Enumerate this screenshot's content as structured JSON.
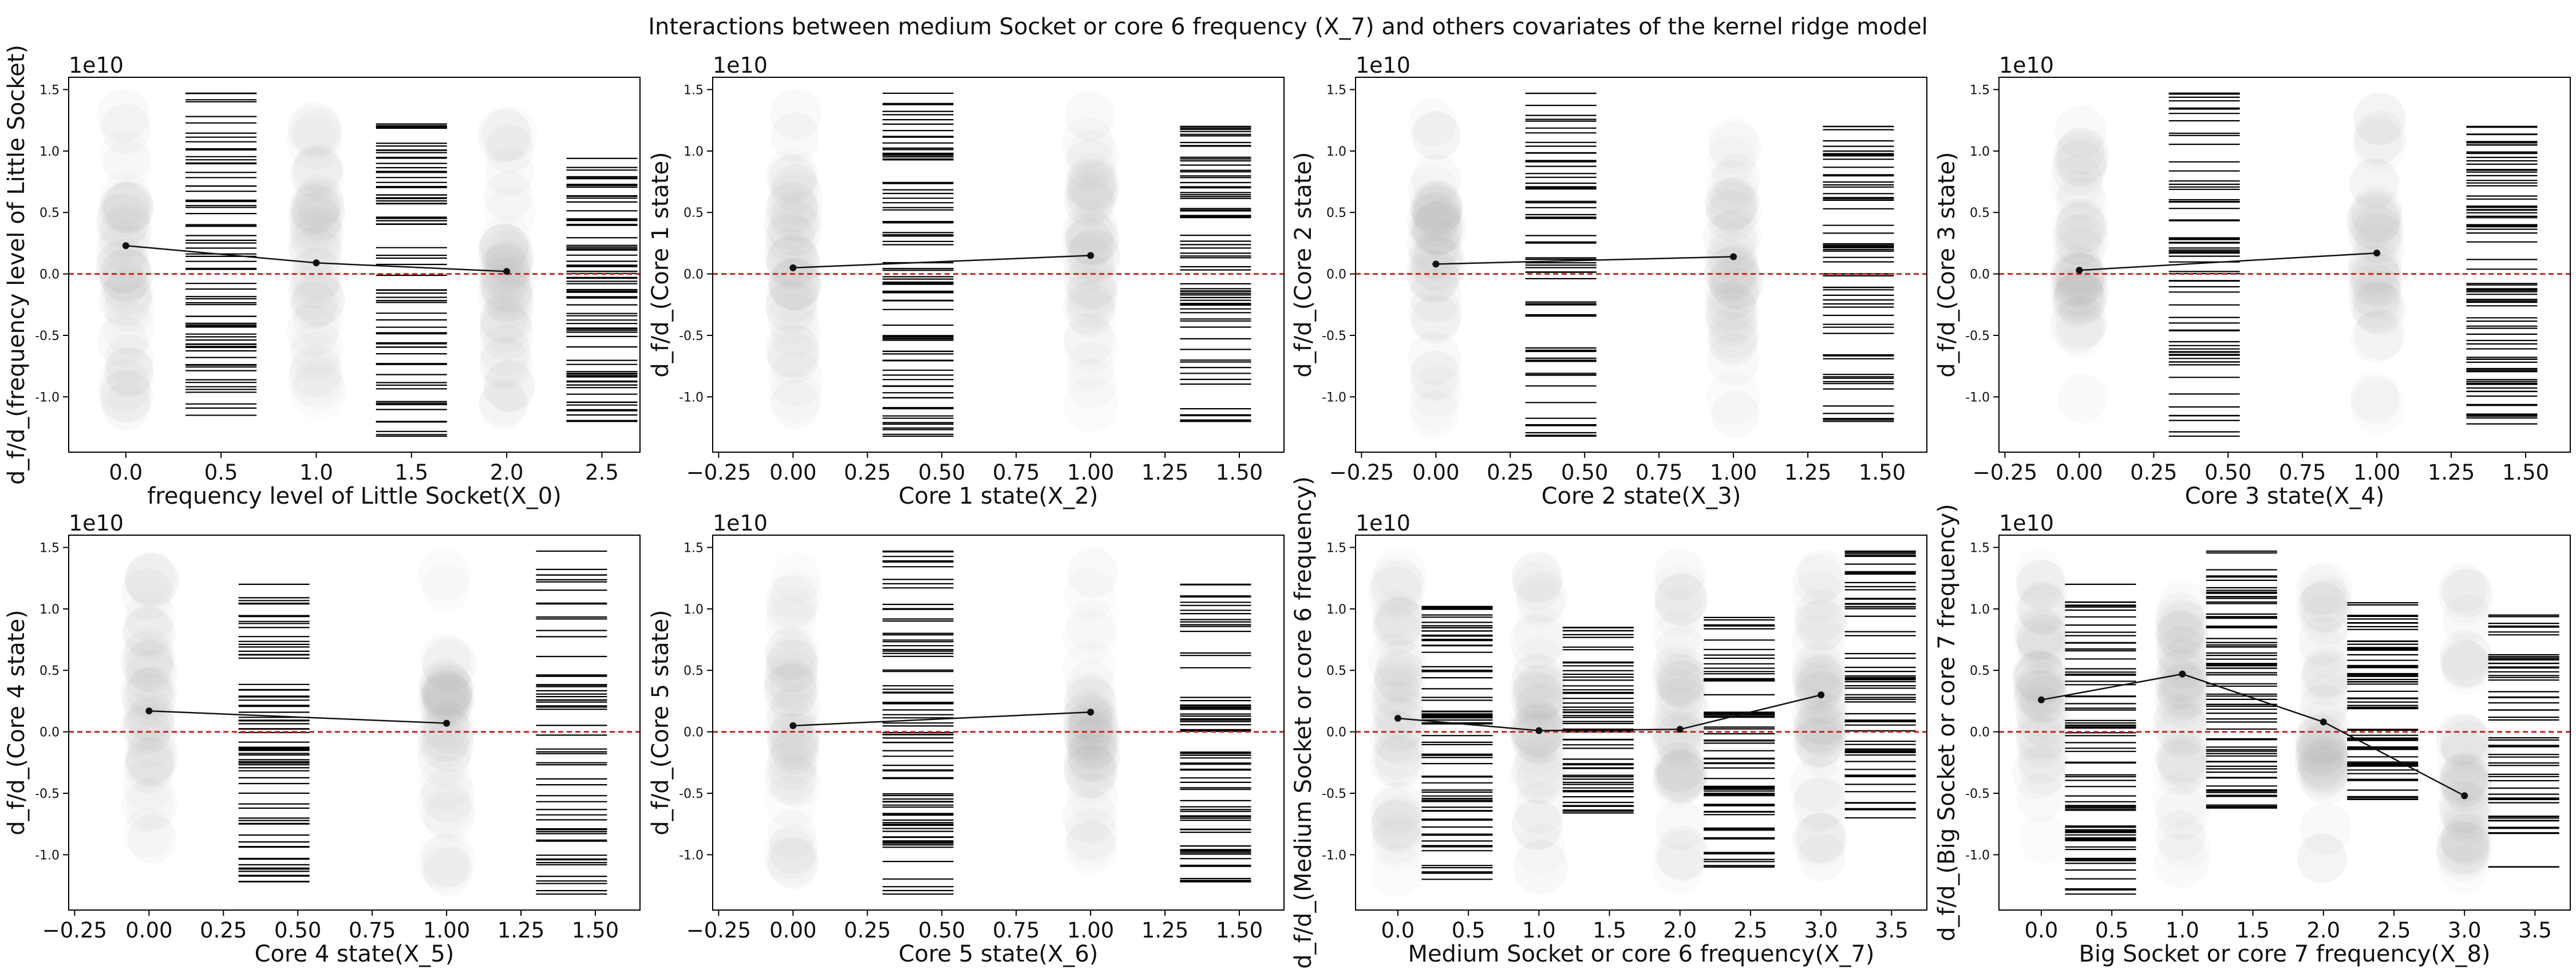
{
  "figure": {
    "title": "Interactions between medium Socket or core 6 frequency (X_7)  and others covariates of the kernel ridge model"
  },
  "style": {
    "reference_line_color": "#cc2222",
    "marker_color": "#111111",
    "rug_color": "#000000",
    "bubble_color": "#9a9a9a"
  },
  "chart_data": [
    {
      "type": "scatter",
      "xlabel": "frequency level of Little Socket(X_0)",
      "ylabel": "d_f/d_(frequency level of Little Socket)",
      "offset_text": "1e10",
      "xlim": [
        -0.3,
        2.7
      ],
      "ylim": [
        -1.45,
        1.6
      ],
      "xticks": [
        "0.0",
        "0.5",
        "1.0",
        "1.5",
        "2.0",
        "2.5"
      ],
      "xtick_values": [
        0,
        0.5,
        1,
        1.5,
        2,
        2.5
      ],
      "yticks": [
        "-1.0",
        "-0.5",
        "0.0",
        "0.5",
        "1.0",
        "1.5"
      ],
      "ytick_values": [
        -1,
        -0.5,
        0,
        0.5,
        1,
        1.5
      ],
      "reference_y": 0,
      "categories": [
        0,
        1,
        2
      ],
      "mean_line": [
        {
          "x": 0,
          "y": 0.23
        },
        {
          "x": 1,
          "y": 0.09
        },
        {
          "x": 2,
          "y": 0.02
        }
      ],
      "rug_columns": [
        {
          "x": 0.5,
          "ymin": -1.15,
          "ymax": 1.47
        },
        {
          "x": 1.5,
          "ymin": -1.32,
          "ymax": 1.22
        },
        {
          "x": 2.5,
          "ymin": -1.2,
          "ymax": 0.94
        }
      ]
    },
    {
      "type": "scatter",
      "xlabel": "Core 1 state(X_2)",
      "ylabel": "d_f/d_(Core 1 state)",
      "offset_text": "1e10",
      "xlim": [
        -0.27,
        1.65
      ],
      "ylim": [
        -1.45,
        1.6
      ],
      "xticks": [
        "−0.25",
        "0.00",
        "0.25",
        "0.50",
        "0.75",
        "1.00",
        "1.25",
        "1.50"
      ],
      "xtick_values": [
        -0.25,
        0,
        0.25,
        0.5,
        0.75,
        1,
        1.25,
        1.5
      ],
      "yticks": [
        "-1.0",
        "-0.5",
        "0.0",
        "0.5",
        "1.0",
        "1.5"
      ],
      "ytick_values": [
        -1,
        -0.5,
        0,
        0.5,
        1,
        1.5
      ],
      "reference_y": 0,
      "categories": [
        0,
        1
      ],
      "mean_line": [
        {
          "x": 0,
          "y": 0.05
        },
        {
          "x": 1,
          "y": 0.15
        }
      ],
      "rug_columns": [
        {
          "x": 0.42,
          "ymin": -1.32,
          "ymax": 1.47
        },
        {
          "x": 1.42,
          "ymin": -1.2,
          "ymax": 1.2
        }
      ]
    },
    {
      "type": "scatter",
      "xlabel": "Core 2 state(X_3)",
      "ylabel": "d_f/d_(Core 2 state)",
      "offset_text": "1e10",
      "xlim": [
        -0.27,
        1.65
      ],
      "ylim": [
        -1.45,
        1.6
      ],
      "xticks": [
        "−0.25",
        "0.00",
        "0.25",
        "0.50",
        "0.75",
        "1.00",
        "1.25",
        "1.50"
      ],
      "xtick_values": [
        -0.25,
        0,
        0.25,
        0.5,
        0.75,
        1,
        1.25,
        1.5
      ],
      "yticks": [
        "-1.0",
        "-0.5",
        "0.0",
        "0.5",
        "1.0",
        "1.5"
      ],
      "ytick_values": [
        -1,
        -0.5,
        0,
        0.5,
        1,
        1.5
      ],
      "reference_y": 0,
      "categories": [
        0,
        1
      ],
      "mean_line": [
        {
          "x": 0,
          "y": 0.08
        },
        {
          "x": 1,
          "y": 0.14
        }
      ],
      "rug_columns": [
        {
          "x": 0.42,
          "ymin": -1.32,
          "ymax": 1.47
        },
        {
          "x": 1.42,
          "ymin": -1.2,
          "ymax": 1.2
        }
      ]
    },
    {
      "type": "scatter",
      "xlabel": "Core 3 state(X_4)",
      "ylabel": "d_f/d_(Core 3 state)",
      "offset_text": "1e10",
      "xlim": [
        -0.27,
        1.65
      ],
      "ylim": [
        -1.45,
        1.6
      ],
      "xticks": [
        "−0.25",
        "0.00",
        "0.25",
        "0.50",
        "0.75",
        "1.00",
        "1.25",
        "1.50"
      ],
      "xtick_values": [
        -0.25,
        0,
        0.25,
        0.5,
        0.75,
        1,
        1.25,
        1.5
      ],
      "yticks": [
        "-1.0",
        "-0.5",
        "0.0",
        "0.5",
        "1.0",
        "1.5"
      ],
      "ytick_values": [
        -1,
        -0.5,
        0,
        0.5,
        1,
        1.5
      ],
      "reference_y": 0,
      "categories": [
        0,
        1
      ],
      "mean_line": [
        {
          "x": 0,
          "y": 0.03
        },
        {
          "x": 1,
          "y": 0.17
        }
      ],
      "rug_columns": [
        {
          "x": 0.42,
          "ymin": -1.32,
          "ymax": 1.47
        },
        {
          "x": 1.42,
          "ymin": -1.22,
          "ymax": 1.2
        }
      ]
    },
    {
      "type": "scatter",
      "xlabel": "Core 4 state(X_5)",
      "ylabel": "d_f/d_(Core 4 state)",
      "offset_text": "1e10",
      "xlim": [
        -0.27,
        1.65
      ],
      "ylim": [
        -1.45,
        1.6
      ],
      "xticks": [
        "−0.25",
        "0.00",
        "0.25",
        "0.50",
        "0.75",
        "1.00",
        "1.25",
        "1.50"
      ],
      "xtick_values": [
        -0.25,
        0,
        0.25,
        0.5,
        0.75,
        1,
        1.25,
        1.5
      ],
      "yticks": [
        "-1.0",
        "-0.5",
        "0.0",
        "0.5",
        "1.0",
        "1.5"
      ],
      "ytick_values": [
        -1,
        -0.5,
        0,
        0.5,
        1,
        1.5
      ],
      "reference_y": 0,
      "categories": [
        0,
        1
      ],
      "mean_line": [
        {
          "x": 0,
          "y": 0.17
        },
        {
          "x": 1,
          "y": 0.07
        }
      ],
      "rug_columns": [
        {
          "x": 0.42,
          "ymin": -1.22,
          "ymax": 1.2
        },
        {
          "x": 1.42,
          "ymin": -1.32,
          "ymax": 1.47
        }
      ]
    },
    {
      "type": "scatter",
      "xlabel": "Core 5 state(X_6)",
      "ylabel": "d_f/d_(Core 5 state)",
      "offset_text": "1e10",
      "xlim": [
        -0.27,
        1.65
      ],
      "ylim": [
        -1.45,
        1.6
      ],
      "xticks": [
        "−0.25",
        "0.00",
        "0.25",
        "0.50",
        "0.75",
        "1.00",
        "1.25",
        "1.50"
      ],
      "xtick_values": [
        -0.25,
        0,
        0.25,
        0.5,
        0.75,
        1,
        1.25,
        1.5
      ],
      "yticks": [
        "-1.0",
        "-0.5",
        "0.0",
        "0.5",
        "1.0",
        "1.5"
      ],
      "ytick_values": [
        -1,
        -0.5,
        0,
        0.5,
        1,
        1.5
      ],
      "reference_y": 0,
      "categories": [
        0,
        1
      ],
      "mean_line": [
        {
          "x": 0,
          "y": 0.05
        },
        {
          "x": 1,
          "y": 0.16
        }
      ],
      "rug_columns": [
        {
          "x": 0.42,
          "ymin": -1.32,
          "ymax": 1.47
        },
        {
          "x": 1.42,
          "ymin": -1.22,
          "ymax": 1.2
        }
      ]
    },
    {
      "type": "scatter",
      "xlabel": "Medium Socket or core 6 frequency(X_7)",
      "ylabel": "d_f/d_(Medium Socket or core 6 frequency)",
      "offset_text": "1e10",
      "xlim": [
        -0.3,
        3.75
      ],
      "ylim": [
        -1.45,
        1.6
      ],
      "xticks": [
        "0.0",
        "0.5",
        "1.0",
        "1.5",
        "2.0",
        "2.5",
        "3.0",
        "3.5"
      ],
      "xtick_values": [
        0,
        0.5,
        1,
        1.5,
        2,
        2.5,
        3,
        3.5
      ],
      "yticks": [
        "-1.0",
        "-0.5",
        "0.0",
        "0.5",
        "1.0",
        "1.5"
      ],
      "ytick_values": [
        -1,
        -0.5,
        0,
        0.5,
        1,
        1.5
      ],
      "reference_y": 0,
      "categories": [
        0,
        1,
        2,
        3
      ],
      "mean_line": [
        {
          "x": 0,
          "y": 0.11
        },
        {
          "x": 1,
          "y": 0.01
        },
        {
          "x": 2,
          "y": 0.02
        },
        {
          "x": 3,
          "y": 0.3
        }
      ],
      "rug_columns": [
        {
          "x": 0.42,
          "ymin": -1.2,
          "ymax": 1.02
        },
        {
          "x": 1.42,
          "ymin": -0.66,
          "ymax": 0.85
        },
        {
          "x": 2.42,
          "ymin": -1.1,
          "ymax": 0.93
        },
        {
          "x": 3.42,
          "ymin": -0.7,
          "ymax": 1.47
        }
      ]
    },
    {
      "type": "scatter",
      "xlabel": "Big Socket or core 7 frequency(X_8)",
      "ylabel": "d_f/d_(Big Socket or core 7 frequency)",
      "offset_text": "1e10",
      "xlim": [
        -0.3,
        3.75
      ],
      "ylim": [
        -1.45,
        1.6
      ],
      "xticks": [
        "0.0",
        "0.5",
        "1.0",
        "1.5",
        "2.0",
        "2.5",
        "3.0",
        "3.5"
      ],
      "xtick_values": [
        0,
        0.5,
        1,
        1.5,
        2,
        2.5,
        3,
        3.5
      ],
      "yticks": [
        "-1.0",
        "-0.5",
        "0.0",
        "0.5",
        "1.0",
        "1.5"
      ],
      "ytick_values": [
        -1,
        -0.5,
        0,
        0.5,
        1,
        1.5
      ],
      "reference_y": 0,
      "categories": [
        0,
        1,
        2,
        3
      ],
      "mean_line": [
        {
          "x": 0,
          "y": 0.26
        },
        {
          "x": 1,
          "y": 0.47
        },
        {
          "x": 2,
          "y": 0.08
        },
        {
          "x": 3,
          "y": -0.52
        }
      ],
      "rug_columns": [
        {
          "x": 0.42,
          "ymin": -1.32,
          "ymax": 1.2
        },
        {
          "x": 1.42,
          "ymin": -0.62,
          "ymax": 1.47
        },
        {
          "x": 2.42,
          "ymin": -0.55,
          "ymax": 1.05
        },
        {
          "x": 3.42,
          "ymin": -1.1,
          "ymax": 0.95
        }
      ]
    }
  ]
}
